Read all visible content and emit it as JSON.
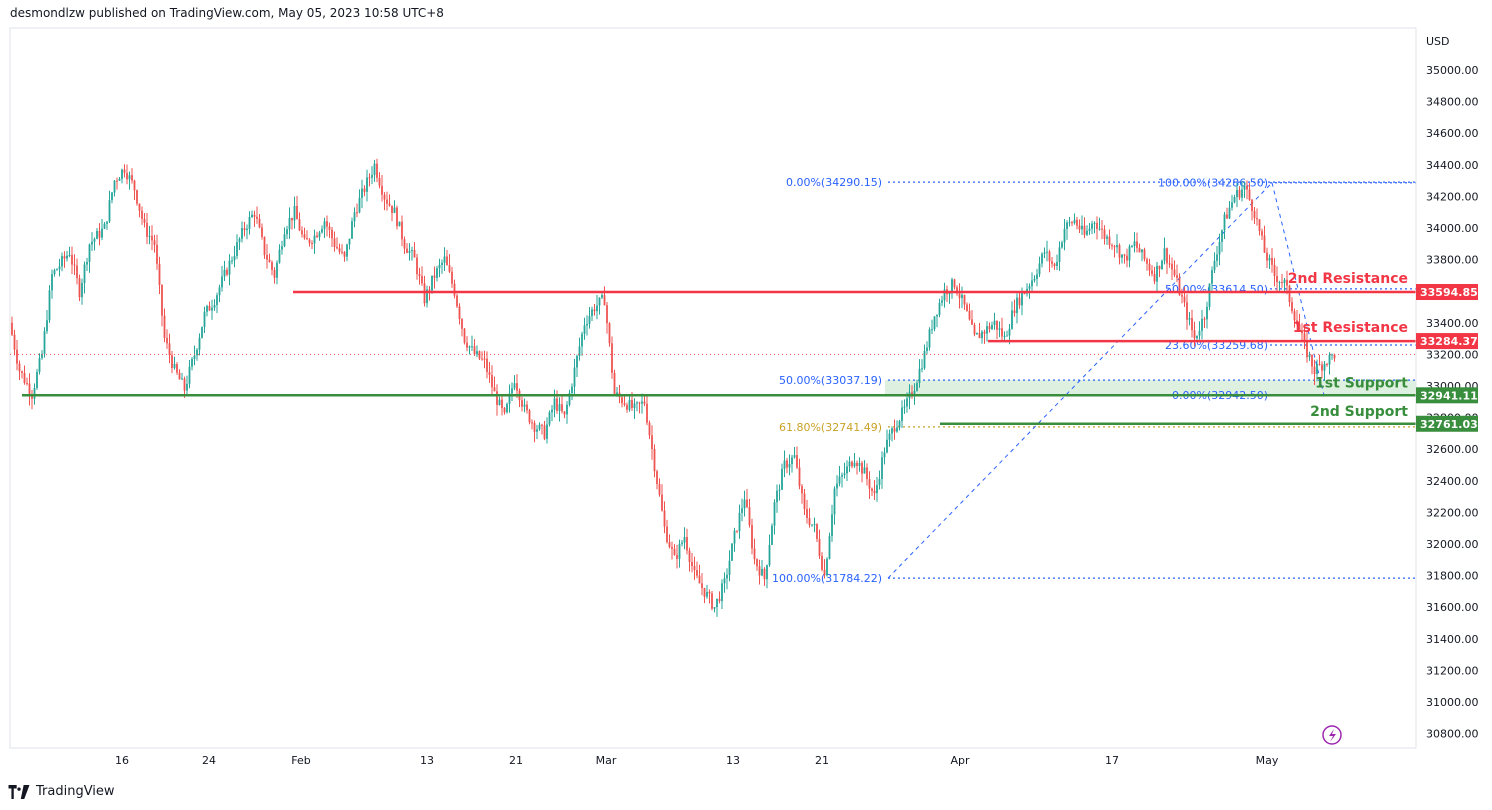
{
  "header": {
    "published": "desmondlzw published on TradingView.com, May 05, 2023 10:58 UTC+8"
  },
  "brand": {
    "name": "TradingView"
  },
  "colors": {
    "up": "#26a69a",
    "down": "#ef5350",
    "resistance": "#f23645",
    "support": "#388e3c",
    "fib": "#2962ff",
    "fib_gold": "#c9a227",
    "axis": "#e0e3eb"
  },
  "chart_data": {
    "type": "candlestick",
    "currency": "USD",
    "ylim": [
      30650,
      35200
    ],
    "y_ticks": [
      30800,
      31000,
      31200,
      31400,
      31600,
      31800,
      32000,
      32200,
      32400,
      32600,
      32800,
      33000,
      33200,
      33400,
      33600,
      33800,
      34000,
      34200,
      34400,
      34600,
      34800,
      35000
    ],
    "y_tick_labels": [
      "30800.00",
      "31000.00",
      "31200.00",
      "31400.00",
      "31600.00",
      "31800.00",
      "32000.00",
      "32200.00",
      "32400.00",
      "32600.00",
      "32800.00",
      "33000.00",
      "33200.00",
      "33400.00",
      "33600.00",
      "33800.00",
      "34000.00",
      "34200.00",
      "34400.00",
      "34600.00",
      "34800.00",
      "35000.00"
    ],
    "x_ticks": [
      "16",
      "24",
      "Feb",
      "13",
      "21",
      "Mar",
      "13",
      "21",
      "Apr",
      "17",
      "May"
    ],
    "last_price": 33200,
    "series_path": [
      [
        0,
        33400
      ],
      [
        4,
        33100
      ],
      [
        9,
        32950
      ],
      [
        13,
        33200
      ],
      [
        17,
        33700
      ],
      [
        24,
        33850
      ],
      [
        28,
        33600
      ],
      [
        32,
        33900
      ],
      [
        38,
        34000
      ],
      [
        42,
        34300
      ],
      [
        46,
        34380
      ],
      [
        50,
        34250
      ],
      [
        54,
        34000
      ],
      [
        58,
        33900
      ],
      [
        62,
        33300
      ],
      [
        66,
        33100
      ],
      [
        70,
        32980
      ],
      [
        74,
        33200
      ],
      [
        78,
        33450
      ],
      [
        82,
        33550
      ],
      [
        86,
        33700
      ],
      [
        90,
        33850
      ],
      [
        94,
        34000
      ],
      [
        98,
        34100
      ],
      [
        102,
        33850
      ],
      [
        106,
        33700
      ],
      [
        110,
        34000
      ],
      [
        114,
        34100
      ],
      [
        118,
        33900
      ],
      [
        122,
        33950
      ],
      [
        126,
        34050
      ],
      [
        130,
        33900
      ],
      [
        134,
        33800
      ],
      [
        138,
        34100
      ],
      [
        142,
        34250
      ],
      [
        146,
        34400
      ],
      [
        150,
        34200
      ],
      [
        154,
        34100
      ],
      [
        158,
        33900
      ],
      [
        162,
        33800
      ],
      [
        166,
        33550
      ],
      [
        170,
        33700
      ],
      [
        174,
        33800
      ],
      [
        178,
        33600
      ],
      [
        182,
        33300
      ],
      [
        186,
        33200
      ],
      [
        190,
        33150
      ],
      [
        194,
        32950
      ],
      [
        198,
        32800
      ],
      [
        202,
        33050
      ],
      [
        206,
        32850
      ],
      [
        210,
        32750
      ],
      [
        214,
        32700
      ],
      [
        218,
        32900
      ],
      [
        222,
        32800
      ],
      [
        226,
        33100
      ],
      [
        230,
        33400
      ],
      [
        234,
        33500
      ],
      [
        238,
        33550
      ],
      [
        242,
        32950
      ],
      [
        246,
        32900
      ],
      [
        250,
        32850
      ],
      [
        254,
        32900
      ],
      [
        258,
        32500
      ],
      [
        262,
        32100
      ],
      [
        266,
        31900
      ],
      [
        270,
        32050
      ],
      [
        274,
        31800
      ],
      [
        278,
        31700
      ],
      [
        282,
        31600
      ],
      [
        286,
        31750
      ],
      [
        290,
        32050
      ],
      [
        294,
        32300
      ],
      [
        298,
        31900
      ],
      [
        302,
        31780
      ],
      [
        306,
        32250
      ],
      [
        310,
        32500
      ],
      [
        314,
        32550
      ],
      [
        318,
        32200
      ],
      [
        322,
        32100
      ],
      [
        326,
        31800
      ],
      [
        330,
        32350
      ],
      [
        334,
        32450
      ],
      [
        338,
        32550
      ],
      [
        342,
        32450
      ],
      [
        346,
        32300
      ],
      [
        350,
        32600
      ],
      [
        354,
        32750
      ],
      [
        358,
        32850
      ],
      [
        362,
        33000
      ],
      [
        366,
        33200
      ],
      [
        370,
        33450
      ],
      [
        374,
        33600
      ],
      [
        378,
        33650
      ],
      [
        382,
        33500
      ],
      [
        386,
        33300
      ],
      [
        390,
        33350
      ],
      [
        394,
        33400
      ],
      [
        398,
        33300
      ],
      [
        402,
        33500
      ],
      [
        406,
        33600
      ],
      [
        410,
        33700
      ],
      [
        414,
        33850
      ],
      [
        418,
        33750
      ],
      [
        422,
        34000
      ],
      [
        426,
        34050
      ],
      [
        430,
        33950
      ],
      [
        434,
        34050
      ],
      [
        438,
        33950
      ],
      [
        442,
        33900
      ],
      [
        446,
        33800
      ],
      [
        450,
        33900
      ],
      [
        454,
        33800
      ],
      [
        458,
        33700
      ],
      [
        462,
        33850
      ],
      [
        466,
        33700
      ],
      [
        470,
        33500
      ],
      [
        474,
        33300
      ],
      [
        478,
        33450
      ],
      [
        482,
        33800
      ],
      [
        486,
        34050
      ],
      [
        490,
        34200
      ],
      [
        494,
        34260
      ],
      [
        498,
        34100
      ],
      [
        502,
        33850
      ],
      [
        506,
        33700
      ],
      [
        510,
        33650
      ],
      [
        514,
        33450
      ],
      [
        518,
        33250
      ],
      [
        522,
        33100
      ],
      [
        526,
        33150
      ],
      [
        530,
        33200
      ]
    ],
    "candles": [],
    "levels": [
      {
        "name": "2nd Resistance",
        "value": 33594.85,
        "label": "33594.85",
        "color": "#f23645"
      },
      {
        "name": "1st Resistance",
        "value": 33284.37,
        "label": "33284.37",
        "color": "#f23645"
      },
      {
        "name": "1st Support",
        "value": 32941.11,
        "label": "32941.11",
        "color": "#388e3c"
      },
      {
        "name": "2nd Support",
        "value": 32761.03,
        "label": "32761.03",
        "color": "#388e3c"
      }
    ],
    "fib_labels": [
      {
        "text": "0.00%(34290.15)",
        "value": 34290.15,
        "color": "#2962ff"
      },
      {
        "text": "100.00%(34286.50)",
        "value": 34286.5,
        "color": "#2962ff"
      },
      {
        "text": "50.00%(33614.50)",
        "value": 33614.5,
        "color": "#2962ff"
      },
      {
        "text": "23.60%(33259.68)",
        "value": 33259.68,
        "color": "#2962ff"
      },
      {
        "text": "50.00%(33037.19)",
        "value": 33037.19,
        "color": "#2962ff"
      },
      {
        "text": "0.00%(32942.50)",
        "value": 32942.5,
        "color": "#2962ff"
      },
      {
        "text": "61.80%(32741.49)",
        "value": 32741.49,
        "color": "#c9a227"
      },
      {
        "text": "100.00%(31784.22)",
        "value": 31784.22,
        "color": "#2962ff"
      }
    ]
  }
}
